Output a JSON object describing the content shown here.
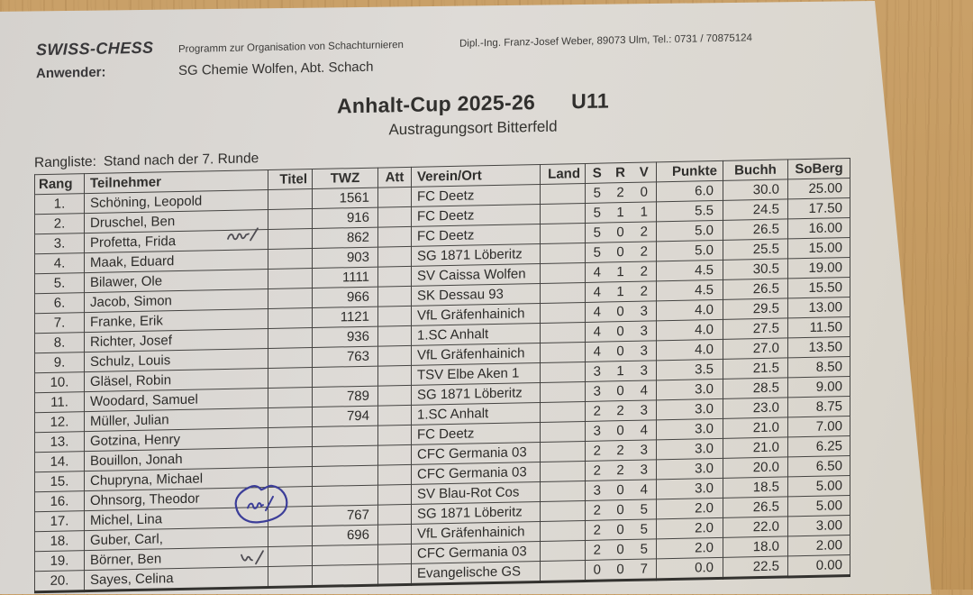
{
  "header": {
    "brand": "SWISS-CHESS",
    "tagline": "Programm zur Organisation von Schachturnieren",
    "contact": "Dipl.-Ing. Franz-Josef Weber, 89073 Ulm, Tel.: 0731 / 70875124",
    "anwender_label": "Anwender:",
    "anwender_value": "SG Chemie Wolfen, Abt. Schach"
  },
  "title": {
    "main": "Anhalt-Cup 2025-26",
    "group": "U11",
    "subtitle": "Austragungsort Bitterfeld"
  },
  "rangliste": {
    "label": "Rangliste:",
    "status": "Stand nach der 7. Runde"
  },
  "table": {
    "columns": [
      {
        "key": "rang",
        "label": "Rang"
      },
      {
        "key": "name",
        "label": "Teilnehmer"
      },
      {
        "key": "titel",
        "label": "Titel"
      },
      {
        "key": "twz",
        "label": "TWZ"
      },
      {
        "key": "att",
        "label": "Att"
      },
      {
        "key": "verein",
        "label": "Verein/Ort"
      },
      {
        "key": "land",
        "label": "Land"
      },
      {
        "key": "s",
        "label": "S"
      },
      {
        "key": "r",
        "label": "R"
      },
      {
        "key": "v",
        "label": "V"
      },
      {
        "key": "punkte",
        "label": "Punkte"
      },
      {
        "key": "buchh",
        "label": "Buchh"
      },
      {
        "key": "soberg",
        "label": "SoBerg"
      }
    ],
    "rows": [
      {
        "rang": "1.",
        "name": "Schöning, Leopold",
        "titel": "",
        "twz": "1561",
        "att": "",
        "verein": "FC Deetz",
        "land": "",
        "s": "5",
        "r": "2",
        "v": "0",
        "punkte": "6.0",
        "buchh": "30.0",
        "soberg": "25.00"
      },
      {
        "rang": "2.",
        "name": "Druschel, Ben",
        "titel": "",
        "twz": "916",
        "att": "",
        "verein": "FC Deetz",
        "land": "",
        "s": "5",
        "r": "1",
        "v": "1",
        "punkte": "5.5",
        "buchh": "24.5",
        "soberg": "17.50"
      },
      {
        "rang": "3.",
        "name": "Profetta, Frida",
        "titel": "",
        "twz": "862",
        "att": "",
        "verein": "FC Deetz",
        "land": "",
        "s": "5",
        "r": "0",
        "v": "2",
        "punkte": "5.0",
        "buchh": "26.5",
        "soberg": "16.00"
      },
      {
        "rang": "4.",
        "name": "Maak, Eduard",
        "titel": "",
        "twz": "903",
        "att": "",
        "verein": "SG 1871 Löberitz",
        "land": "",
        "s": "5",
        "r": "0",
        "v": "2",
        "punkte": "5.0",
        "buchh": "25.5",
        "soberg": "15.00"
      },
      {
        "rang": "5.",
        "name": "Bilawer, Ole",
        "titel": "",
        "twz": "1111",
        "att": "",
        "verein": "SV Caissa Wolfen",
        "land": "",
        "s": "4",
        "r": "1",
        "v": "2",
        "punkte": "4.5",
        "buchh": "30.5",
        "soberg": "19.00"
      },
      {
        "rang": "6.",
        "name": "Jacob, Simon",
        "titel": "",
        "twz": "966",
        "att": "",
        "verein": "SK Dessau 93",
        "land": "",
        "s": "4",
        "r": "1",
        "v": "2",
        "punkte": "4.5",
        "buchh": "26.5",
        "soberg": "15.50"
      },
      {
        "rang": "7.",
        "name": "Franke, Erik",
        "titel": "",
        "twz": "1121",
        "att": "",
        "verein": "VfL Gräfenhainich",
        "land": "",
        "s": "4",
        "r": "0",
        "v": "3",
        "punkte": "4.0",
        "buchh": "29.5",
        "soberg": "13.00"
      },
      {
        "rang": "8.",
        "name": "Richter, Josef",
        "titel": "",
        "twz": "936",
        "att": "",
        "verein": "1.SC Anhalt",
        "land": "",
        "s": "4",
        "r": "0",
        "v": "3",
        "punkte": "4.0",
        "buchh": "27.5",
        "soberg": "11.50"
      },
      {
        "rang": "9.",
        "name": "Schulz, Louis",
        "titel": "",
        "twz": "763",
        "att": "",
        "verein": "VfL Gräfenhainich",
        "land": "",
        "s": "4",
        "r": "0",
        "v": "3",
        "punkte": "4.0",
        "buchh": "27.0",
        "soberg": "13.50"
      },
      {
        "rang": "10.",
        "name": "Gläsel, Robin",
        "titel": "",
        "twz": "",
        "att": "",
        "verein": "TSV Elbe Aken 1",
        "land": "",
        "s": "3",
        "r": "1",
        "v": "3",
        "punkte": "3.5",
        "buchh": "21.5",
        "soberg": "8.50"
      },
      {
        "rang": "11.",
        "name": "Woodard, Samuel",
        "titel": "",
        "twz": "789",
        "att": "",
        "verein": "SG 1871 Löberitz",
        "land": "",
        "s": "3",
        "r": "0",
        "v": "4",
        "punkte": "3.0",
        "buchh": "28.5",
        "soberg": "9.00"
      },
      {
        "rang": "12.",
        "name": "Müller, Julian",
        "titel": "",
        "twz": "794",
        "att": "",
        "verein": "1.SC Anhalt",
        "land": "",
        "s": "2",
        "r": "2",
        "v": "3",
        "punkte": "3.0",
        "buchh": "23.0",
        "soberg": "8.75"
      },
      {
        "rang": "13.",
        "name": "Gotzina, Henry",
        "titel": "",
        "twz": "",
        "att": "",
        "verein": "FC Deetz",
        "land": "",
        "s": "3",
        "r": "0",
        "v": "4",
        "punkte": "3.0",
        "buchh": "21.0",
        "soberg": "7.00"
      },
      {
        "rang": "14.",
        "name": "Bouillon, Jonah",
        "titel": "",
        "twz": "",
        "att": "",
        "verein": "CFC Germania 03",
        "land": "",
        "s": "2",
        "r": "2",
        "v": "3",
        "punkte": "3.0",
        "buchh": "21.0",
        "soberg": "6.25"
      },
      {
        "rang": "15.",
        "name": "Chupryna, Michael",
        "titel": "",
        "twz": "",
        "att": "",
        "verein": "CFC Germania 03",
        "land": "",
        "s": "2",
        "r": "2",
        "v": "3",
        "punkte": "3.0",
        "buchh": "20.0",
        "soberg": "6.50"
      },
      {
        "rang": "16.",
        "name": "Ohnsorg, Theodor",
        "titel": "",
        "twz": "",
        "att": "",
        "verein": "SV Blau-Rot Cos",
        "land": "",
        "s": "3",
        "r": "0",
        "v": "4",
        "punkte": "3.0",
        "buchh": "18.5",
        "soberg": "5.00"
      },
      {
        "rang": "17.",
        "name": "Michel, Lina",
        "titel": "",
        "twz": "767",
        "att": "",
        "verein": "SG 1871 Löberitz",
        "land": "",
        "s": "2",
        "r": "0",
        "v": "5",
        "punkte": "2.0",
        "buchh": "26.5",
        "soberg": "5.00"
      },
      {
        "rang": "18.",
        "name": "Guber, Carl,",
        "titel": "",
        "twz": "696",
        "att": "",
        "verein": "VfL Gräfenhainich",
        "land": "",
        "s": "2",
        "r": "0",
        "v": "5",
        "punkte": "2.0",
        "buchh": "22.0",
        "soberg": "3.00"
      },
      {
        "rang": "19.",
        "name": "Börner, Ben",
        "titel": "",
        "twz": "",
        "att": "",
        "verein": "CFC Germania 03",
        "land": "",
        "s": "2",
        "r": "0",
        "v": "5",
        "punkte": "2.0",
        "buchh": "18.0",
        "soberg": "2.00"
      },
      {
        "rang": "20.",
        "name": "Sayes, Celina",
        "titel": "",
        "twz": "",
        "att": "",
        "verein": "Evangelische GS",
        "land": "",
        "s": "0",
        "r": "0",
        "v": "7",
        "punkte": "0.0",
        "buchh": "22.5",
        "soberg": "0.00"
      }
    ]
  },
  "handwriting": [
    {
      "text": "W/",
      "ink": "dark",
      "circled": false,
      "beside": "Profetta, Frida"
    },
    {
      "text": "W/",
      "ink": "blue",
      "circled": true,
      "beside": "Michel, Lina"
    },
    {
      "text": "W/",
      "ink": "dark",
      "circled": false,
      "beside": "Sayes, Celina"
    }
  ],
  "colors": {
    "paper": "#dcd9d5",
    "wood": "#c49d64",
    "text": "#2c2b29",
    "ink_dark": "#4e4c52",
    "ink_blue": "#3c3e99"
  }
}
